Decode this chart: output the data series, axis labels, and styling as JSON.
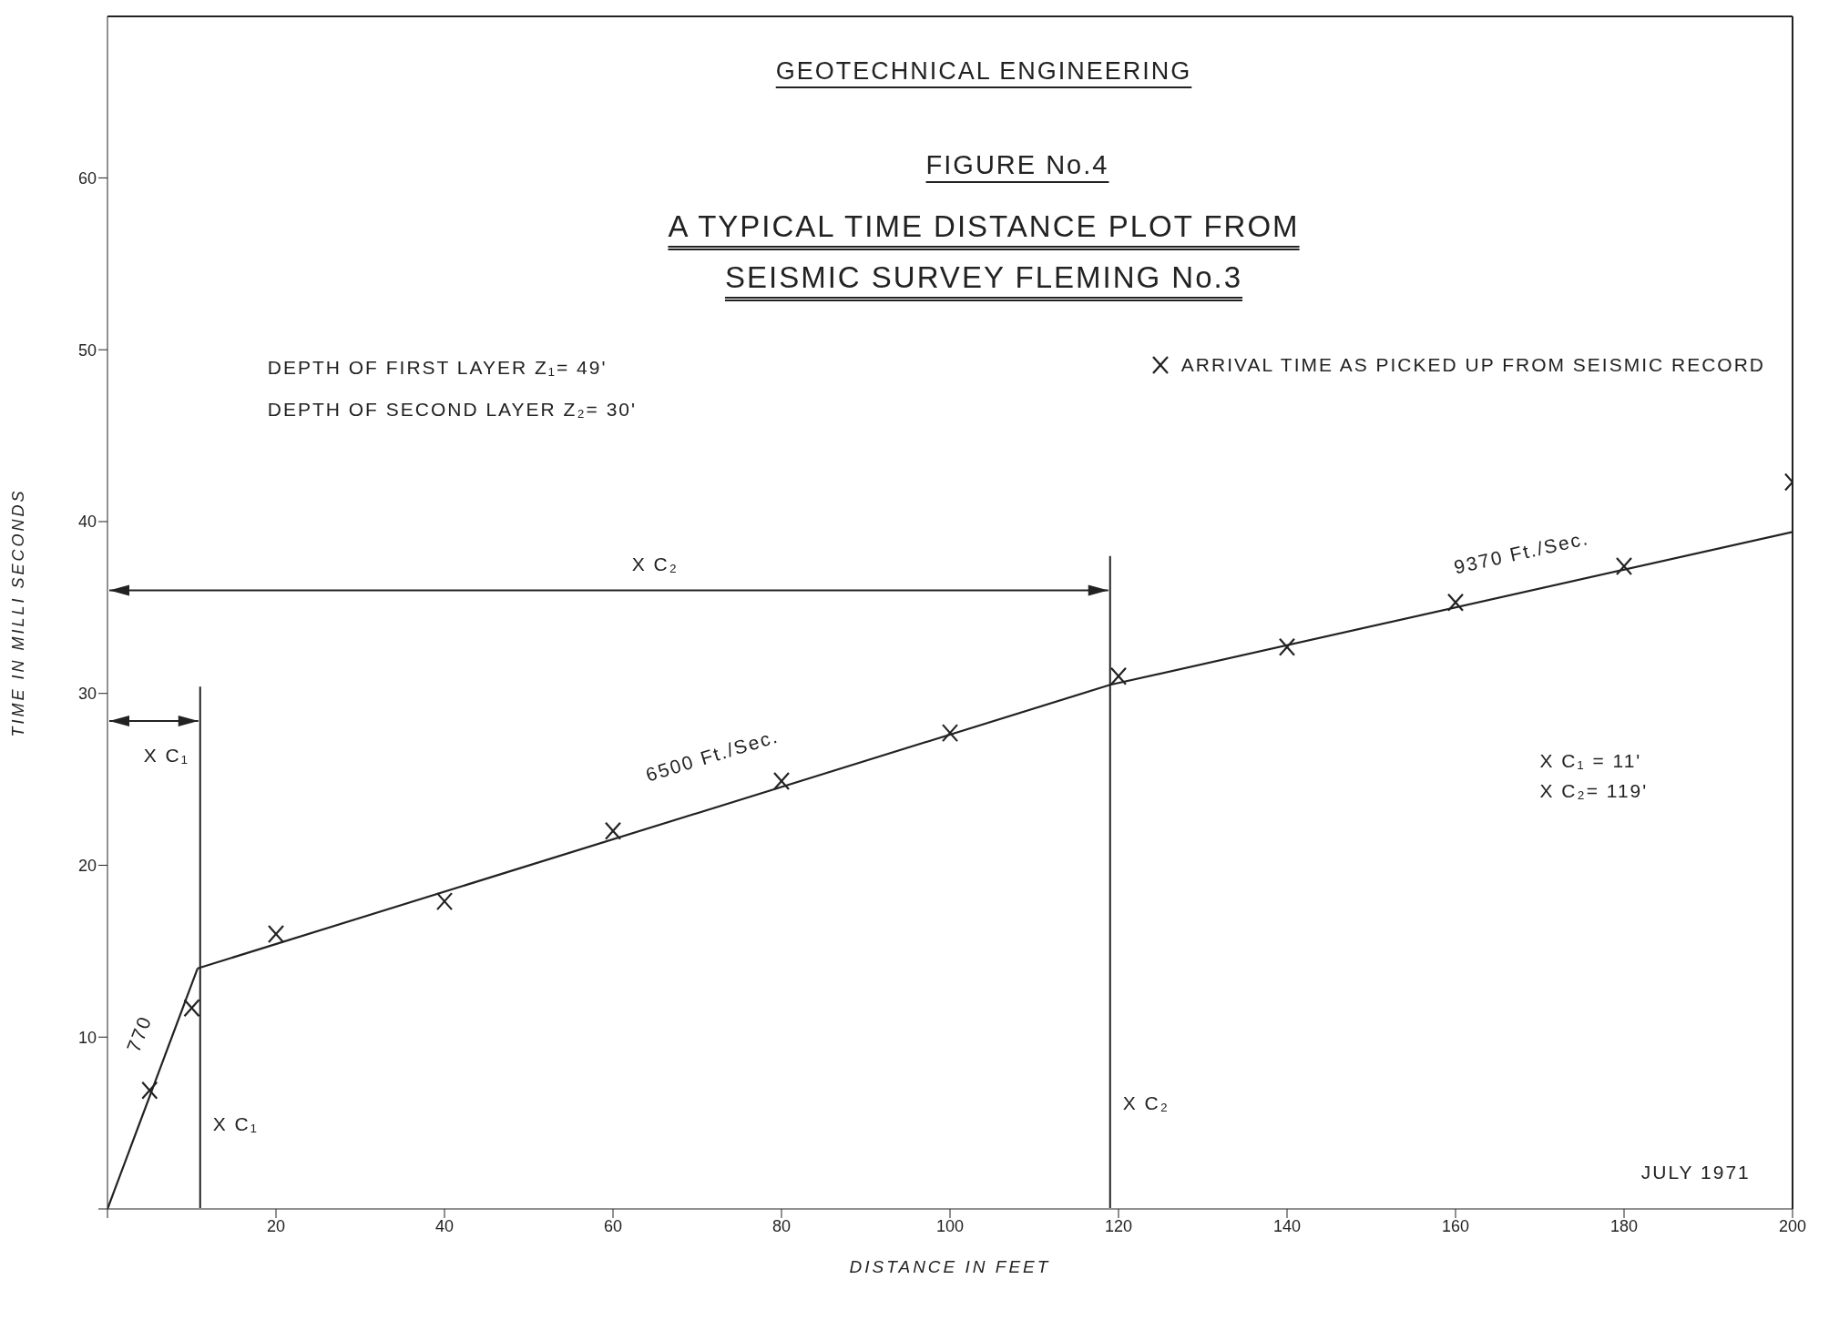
{
  "chart_data": {
    "type": "scatter",
    "title": "FIGURE No.4",
    "subtitle": "A TYPICAL TIME DISTANCE PLOT FROM SEISMIC SURVEY FLEMING No.3",
    "xlabel": "DISTANCE IN FEET",
    "ylabel": "TIME IN MILLI SECONDS",
    "series": [
      {
        "name": "ARRIVAL TIME AS PICKED UP FROM SEISMIC RECORD",
        "color": "#222222",
        "marker": "cross",
        "x": [
          5,
          10,
          20,
          40,
          60,
          80,
          100,
          120,
          140,
          160,
          180,
          200
        ],
        "values": [
          6.9,
          11.7,
          16.0,
          17.9,
          22.0,
          24.9,
          27.7,
          31.0,
          32.7,
          35.3,
          37.4,
          42.3
        ]
      },
      {
        "type": "line",
        "color": "#222222",
        "x": [
          0,
          10.7
        ],
        "values": [
          0,
          14.0
        ]
      },
      {
        "type": "line",
        "color": "#222222",
        "x": [
          10.7,
          119
        ],
        "values": [
          14.0,
          30.5
        ]
      },
      {
        "type": "line",
        "color": "#222222",
        "x": [
          119,
          200
        ],
        "values": [
          30.5,
          39.4
        ]
      }
    ],
    "xlim": [
      0,
      200
    ],
    "ylim": [
      0,
      69.4
    ],
    "xticks": [
      {
        "value": 0,
        "label": null
      },
      20,
      40,
      60,
      80,
      100,
      120,
      140,
      160,
      180,
      200
    ],
    "yticks": [
      {
        "value": 0,
        "label": null
      },
      10,
      20,
      30,
      40,
      50,
      60
    ],
    "ref_lines": [
      {
        "axis": "x",
        "value": 11,
        "label": "X C₁",
        "color": "#222222"
      },
      {
        "axis": "x",
        "value": 119,
        "label": "X C₂",
        "color": "#222222"
      }
    ],
    "annotations": [
      "GEOTECHNICAL ENGINEERING",
      "DEPTH OF FIRST LAYER Z₁= 49'",
      "DEPTH OF SECOND LAYER Z₂= 30'",
      "X C₁ = 11'",
      "X C₂= 119'",
      "JULY 1971",
      "770",
      "6500 Ft./Sec.",
      "9370 Ft./Sec.",
      "X C₂",
      "X C₁"
    ],
    "legend": "top right"
  }
}
